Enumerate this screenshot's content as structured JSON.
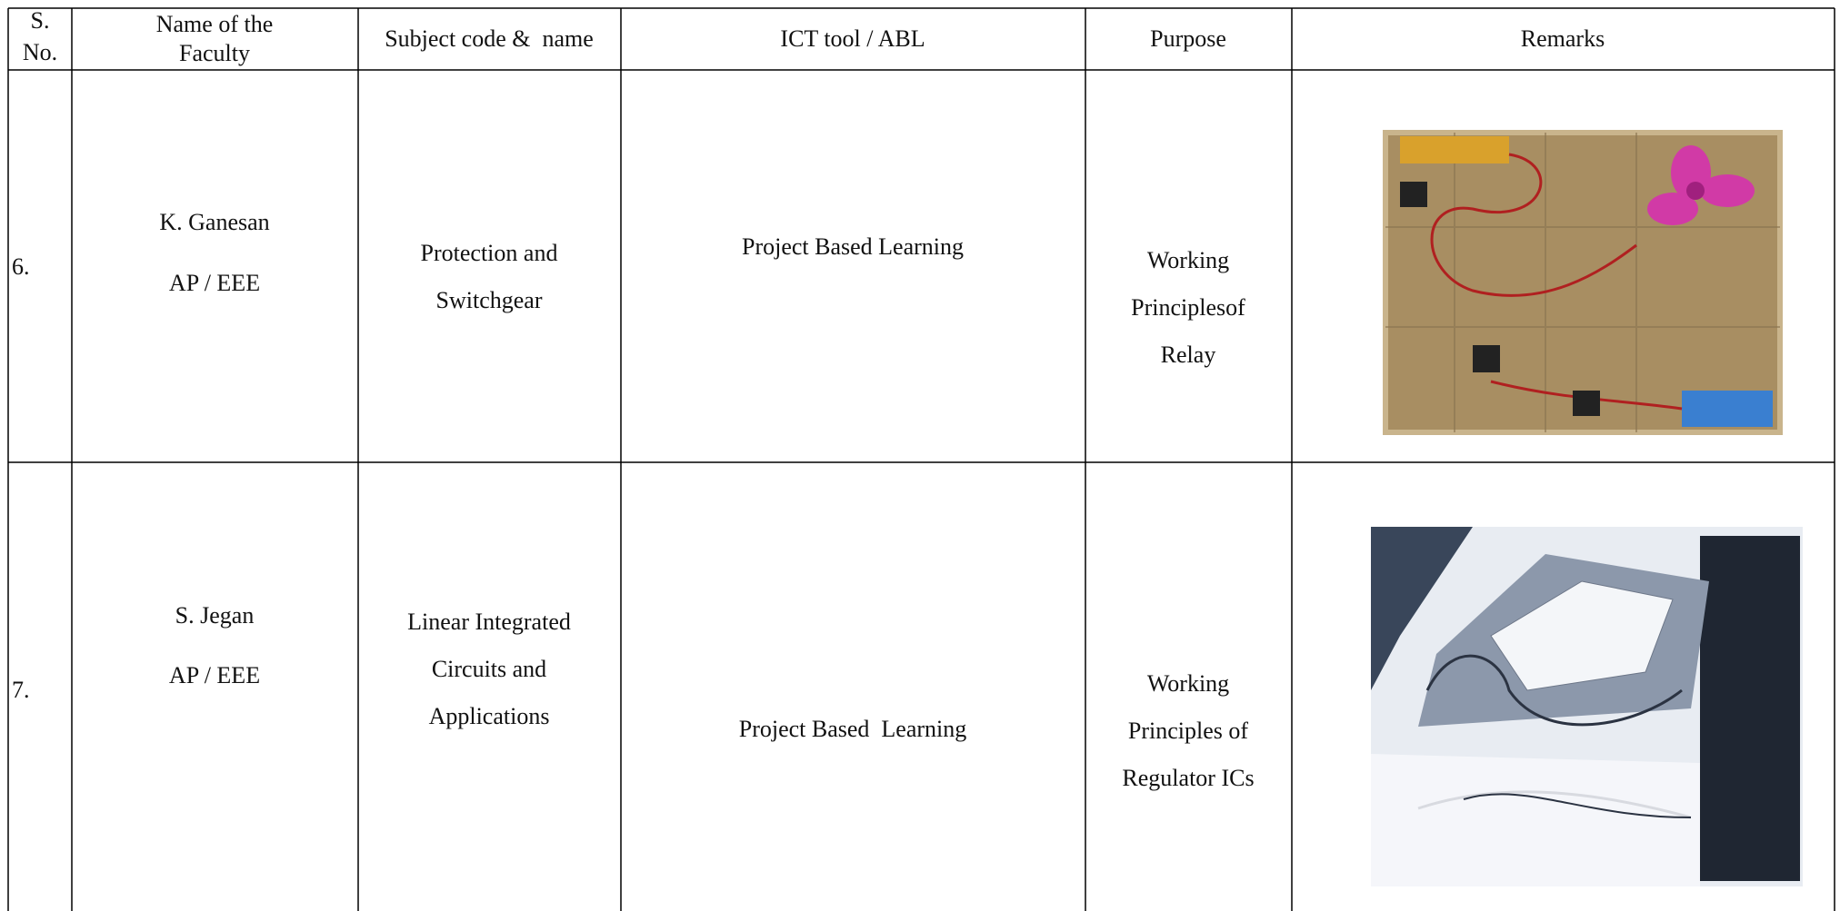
{
  "table": {
    "header": [
      [
        "S.",
        "No."
      ],
      [
        "Name of the",
        "Faculty"
      ],
      [
        "Subject code &  name"
      ],
      [
        "ICT tool / ABL"
      ],
      [
        "Purpose"
      ],
      [
        "Remarks"
      ]
    ],
    "rows": [
      [
        [
          "6."
        ],
        [
          "K. Ganesan",
          "AP / EEE"
        ],
        [
          "Protection and",
          "Switchgear"
        ],
        [
          "Project Based Learning"
        ],
        [
          "Working",
          "Principlesof",
          "Relay"
        ]
      ],
      [
        [
          "7."
        ],
        [
          "S. Jegan",
          "AP / EEE"
        ],
        [
          "Linear Integrated",
          "Circuits and",
          "Applications"
        ],
        [
          "Project Based  Learning"
        ],
        [
          "Working",
          "Principles of",
          "Regulator ICs"
        ]
      ]
    ]
  }
}
